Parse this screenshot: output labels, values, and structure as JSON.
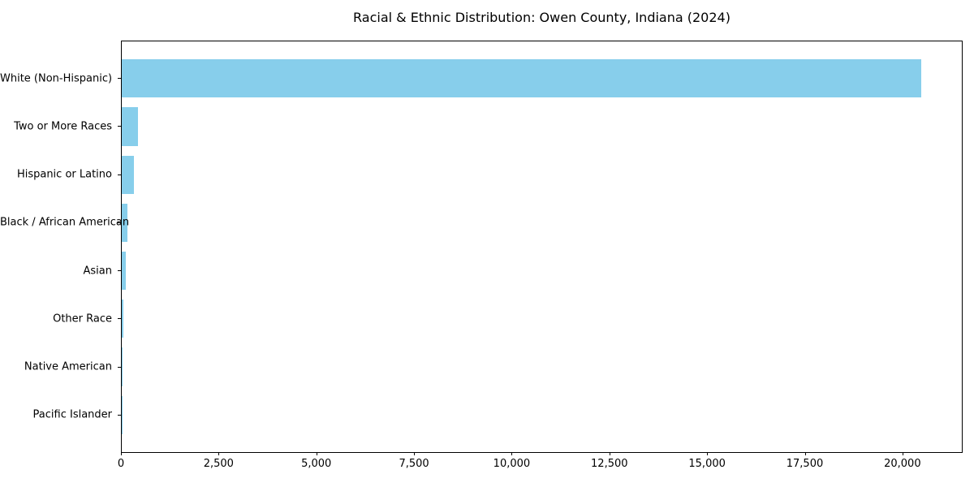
{
  "chart_data": {
    "type": "bar",
    "orientation": "horizontal",
    "title": "Racial & Ethnic Distribution: Owen County, Indiana (2024)",
    "categories": [
      "White (Non-Hispanic)",
      "Two or More Races",
      "Hispanic or Latino",
      "Black / African American",
      "Asian",
      "Other Race",
      "Native American",
      "Pacific Islander"
    ],
    "values": [
      20500,
      410,
      320,
      155,
      110,
      42,
      15,
      5
    ],
    "xlabel": "",
    "ylabel": "",
    "xlim": [
      0,
      21540
    ],
    "xticks": [
      0,
      2500,
      5000,
      7500,
      10000,
      12500,
      15000,
      17500,
      20000
    ],
    "xtick_labels": [
      "0",
      "2,500",
      "5,000",
      "7,500",
      "10,000",
      "12,500",
      "15,000",
      "17,500",
      "20,000"
    ],
    "bar_color": "#87CEEB",
    "spine_color": "#000000",
    "text_color": "#000000",
    "background_color": "#ffffff",
    "grid": false,
    "legend": null
  }
}
